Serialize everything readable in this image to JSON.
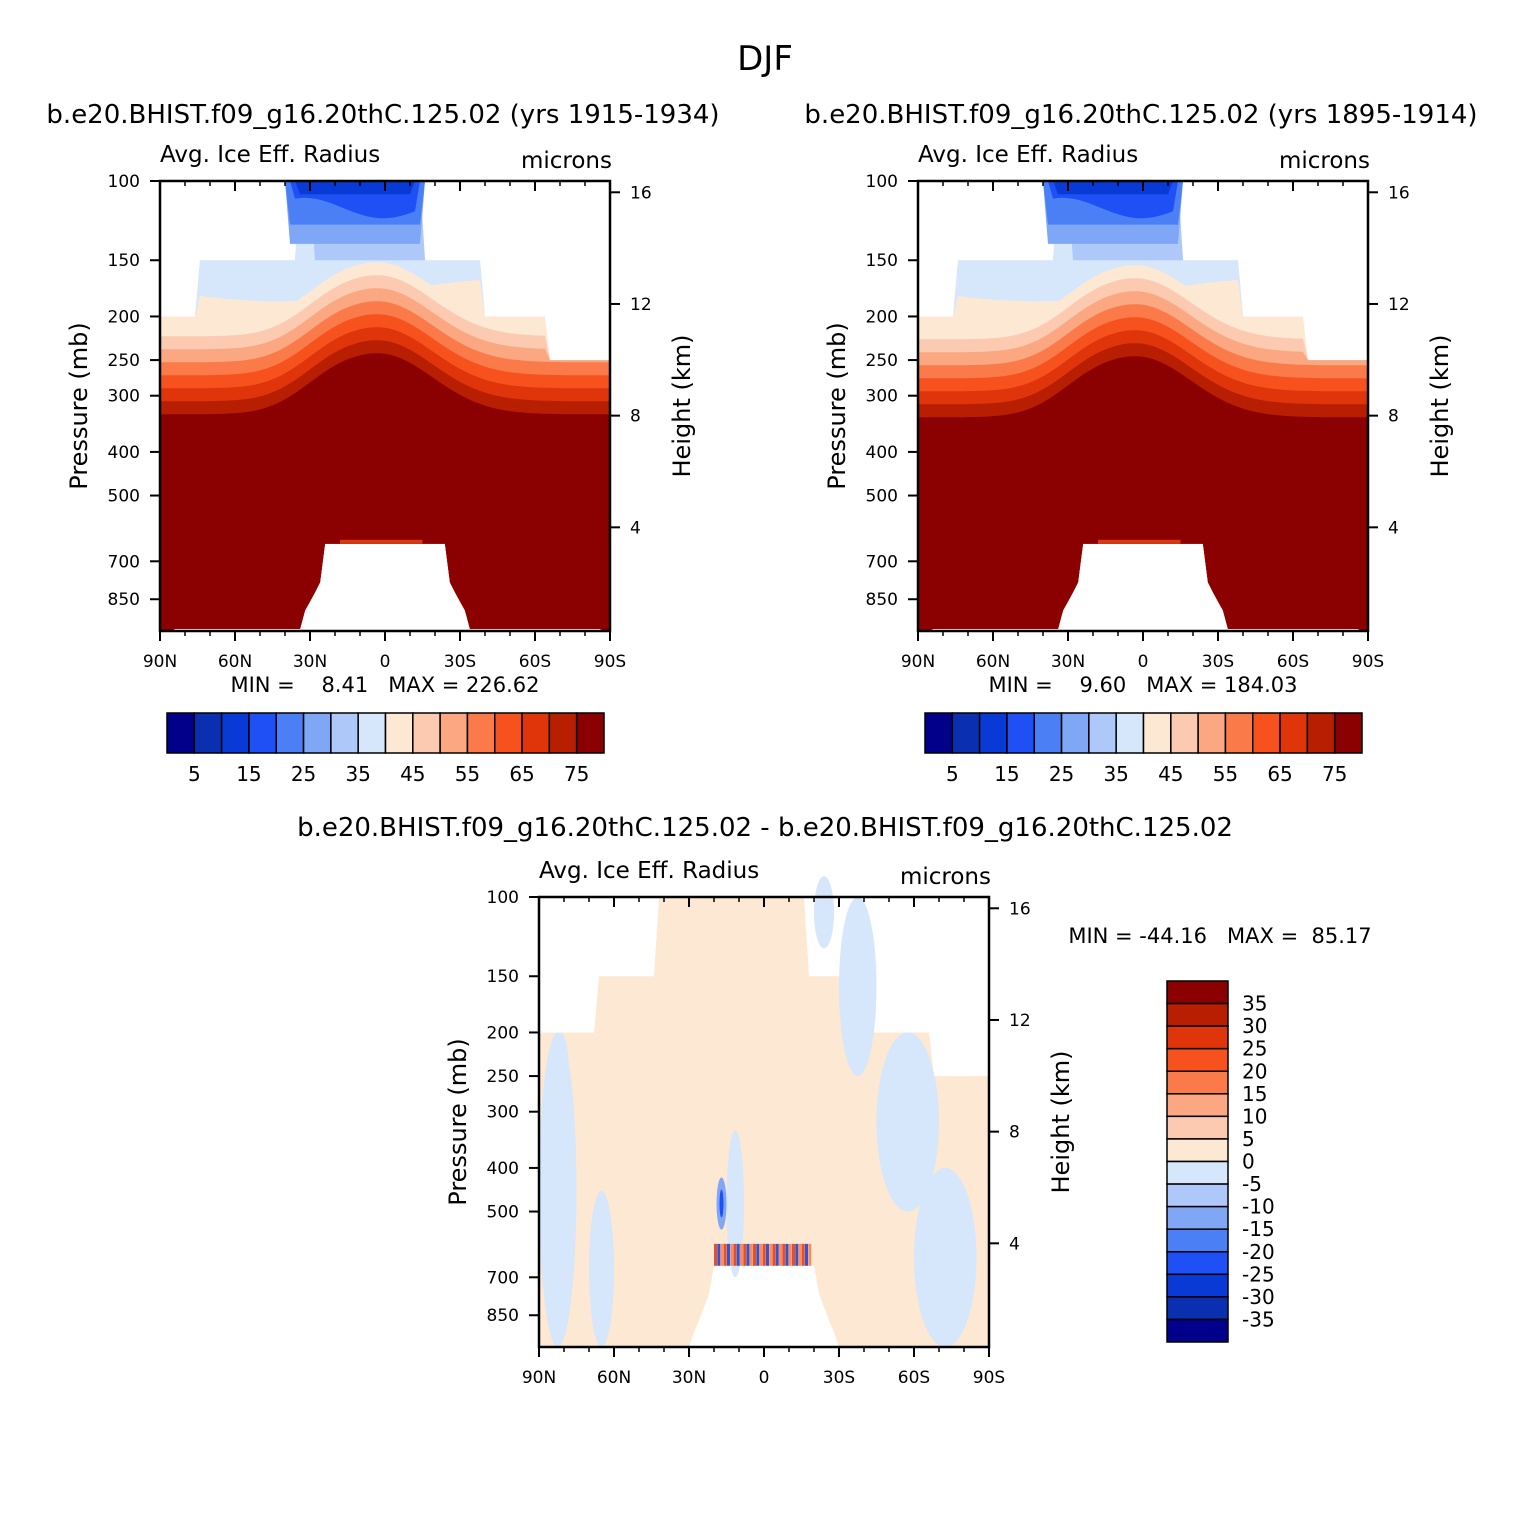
{
  "figure_title": "DJF",
  "colors": {
    "seq": [
      "#00008b",
      "#0a2fb0",
      "#0a3ad6",
      "#1e50f5",
      "#4a7ff5",
      "#7fa7f5",
      "#aec8fa",
      "#d6e6fb",
      "#fde8d4",
      "#fccab0",
      "#fba882",
      "#fb7a4a",
      "#f7521e",
      "#e0340a",
      "#b81e02",
      "#8b0000"
    ],
    "diff": [
      "#00008b",
      "#0a2fb0",
      "#0a3ad6",
      "#1e50f5",
      "#4a7ff5",
      "#7fa7f5",
      "#aec8fa",
      "#d6e6fb",
      "#fde8d4",
      "#fccab0",
      "#fba882",
      "#fb7a4a",
      "#f7521e",
      "#e0340a",
      "#b81e02",
      "#8b0000"
    ]
  },
  "panels": [
    {
      "id": "left",
      "case_title": "b.e20.BHIST.f09_g16.20thC.125.02 (yrs 1915-1934)",
      "var_label": "Avg. Ice Eff. Radius",
      "units": "microns",
      "ylabel": "Pressure (mb)",
      "ylabel_right": "Height (km)",
      "stats": "MIN =    8.41   MAX = 226.62"
    },
    {
      "id": "right",
      "case_title": "b.e20.BHIST.f09_g16.20thC.125.02 (yrs 1895-1914)",
      "var_label": "Avg. Ice Eff. Radius",
      "units": "microns",
      "ylabel": "Pressure (mb)",
      "ylabel_right": "Height (km)",
      "stats": "MIN =    9.60   MAX = 184.03"
    },
    {
      "id": "diff",
      "case_title": "b.e20.BHIST.f09_g16.20thC.125.02 - b.e20.BHIST.f09_g16.20thC.125.02",
      "var_label": "Avg. Ice Eff. Radius",
      "units": "microns",
      "ylabel": "Pressure (mb)",
      "ylabel_right": "Height (km)",
      "stats": "MIN = -44.16   MAX =  85.17"
    }
  ],
  "chart_data": [
    {
      "type": "heatmap",
      "title": "b.e20.BHIST.f09_g16.20thC.125.02 (yrs 1915-1934)",
      "subtitle": "Avg. Ice Eff. Radius",
      "units": "microns",
      "x": {
        "label": "",
        "range": [
          90,
          -90
        ],
        "ticks": [
          "90N",
          "60N",
          "30N",
          "0",
          "30S",
          "60S",
          "90S"
        ]
      },
      "y": {
        "label": "Pressure (mb)",
        "range": [
          100,
          1000
        ],
        "scale": "log",
        "ticks": [
          100,
          150,
          200,
          250,
          300,
          400,
          500,
          700,
          850
        ]
      },
      "y_right": {
        "label": "Height (km)",
        "ticks": [
          16,
          12,
          8,
          4
        ]
      },
      "min": 8.41,
      "max": 226.62,
      "colorbar": {
        "orientation": "horizontal",
        "labels": [
          "5",
          "15",
          "25",
          "35",
          "45",
          "55",
          "65",
          "75"
        ]
      }
    },
    {
      "type": "heatmap",
      "title": "b.e20.BHIST.f09_g16.20thC.125.02 (yrs 1895-1914)",
      "subtitle": "Avg. Ice Eff. Radius",
      "units": "microns",
      "x": {
        "label": "",
        "range": [
          90,
          -90
        ],
        "ticks": [
          "90N",
          "60N",
          "30N",
          "0",
          "30S",
          "60S",
          "90S"
        ]
      },
      "y": {
        "label": "Pressure (mb)",
        "range": [
          100,
          1000
        ],
        "scale": "log",
        "ticks": [
          100,
          150,
          200,
          250,
          300,
          400,
          500,
          700,
          850
        ]
      },
      "y_right": {
        "label": "Height (km)",
        "ticks": [
          16,
          12,
          8,
          4
        ]
      },
      "min": 9.6,
      "max": 184.03,
      "colorbar": {
        "orientation": "horizontal",
        "labels": [
          "5",
          "15",
          "25",
          "35",
          "45",
          "55",
          "65",
          "75"
        ]
      }
    },
    {
      "type": "heatmap",
      "title": "b.e20.BHIST.f09_g16.20thC.125.02 - b.e20.BHIST.f09_g16.20thC.125.02",
      "subtitle": "Avg. Ice Eff. Radius",
      "units": "microns",
      "x": {
        "label": "",
        "range": [
          90,
          -90
        ],
        "ticks": [
          "90N",
          "60N",
          "30N",
          "0",
          "30S",
          "60S",
          "90S"
        ]
      },
      "y": {
        "label": "Pressure (mb)",
        "range": [
          100,
          1000
        ],
        "scale": "log",
        "ticks": [
          100,
          150,
          200,
          250,
          300,
          400,
          500,
          700,
          850
        ]
      },
      "y_right": {
        "label": "Height (km)",
        "ticks": [
          16,
          12,
          8,
          4
        ]
      },
      "min": -44.16,
      "max": 85.17,
      "colorbar": {
        "orientation": "vertical",
        "labels": [
          "35",
          "30",
          "25",
          "20",
          "15",
          "10",
          "5",
          "0",
          "-5",
          "-10",
          "-15",
          "-20",
          "-25",
          "-30",
          "-35"
        ]
      }
    }
  ]
}
